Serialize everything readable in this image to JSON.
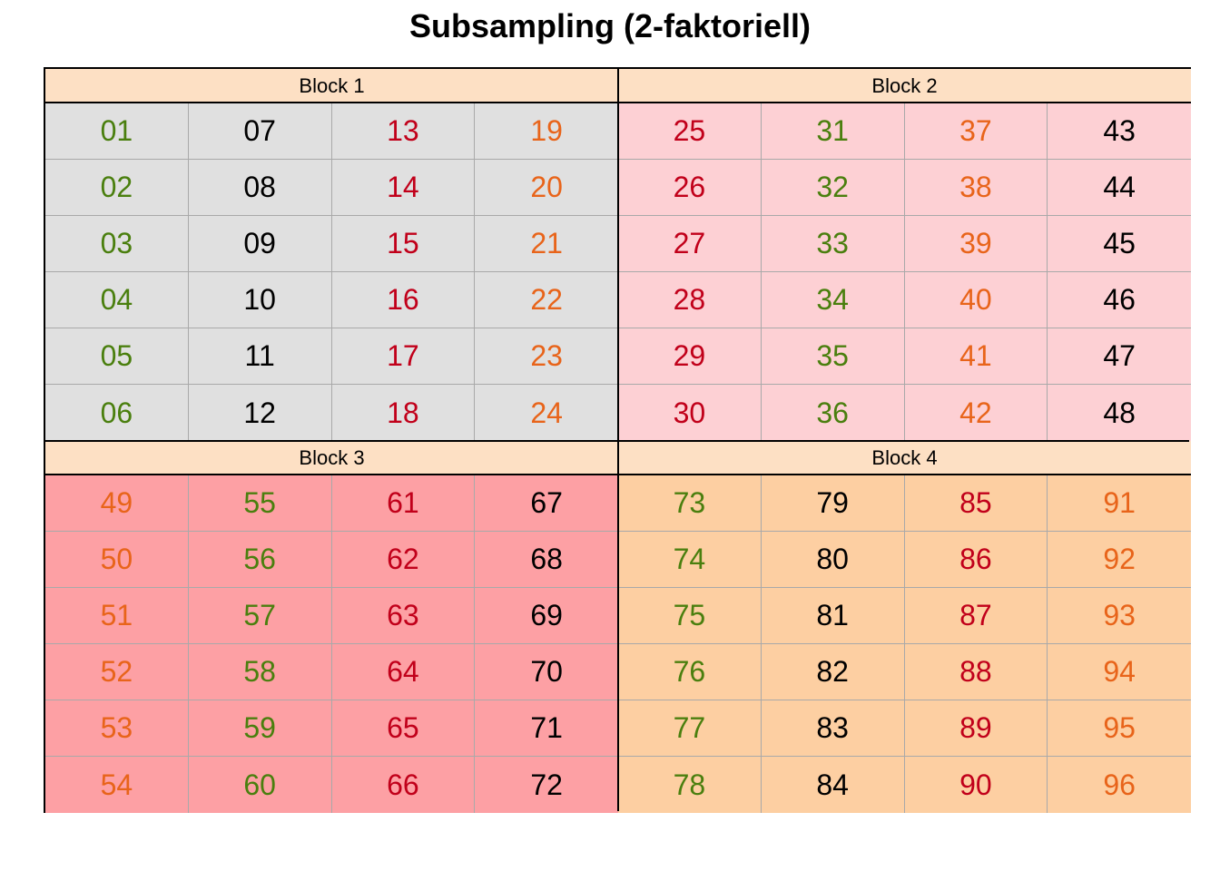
{
  "title": "Subsampling (2-faktoriell)",
  "colors": {
    "header_bg": "#fde0c4",
    "green": "#4a7f0e",
    "black": "#000000",
    "red": "#c1001a",
    "orange": "#e8641a"
  },
  "blocks": [
    {
      "label": "Block 1",
      "bg": "#e0e0e0",
      "column_colors": [
        "green",
        "black",
        "red",
        "orange"
      ],
      "columns": [
        [
          "01",
          "02",
          "03",
          "04",
          "05",
          "06"
        ],
        [
          "07",
          "08",
          "09",
          "10",
          "11",
          "12"
        ],
        [
          "13",
          "14",
          "15",
          "16",
          "17",
          "18"
        ],
        [
          "19",
          "20",
          "21",
          "22",
          "23",
          "24"
        ]
      ]
    },
    {
      "label": "Block 2",
      "bg": "#fdd0d4",
      "column_colors": [
        "red",
        "green",
        "orange",
        "black"
      ],
      "columns": [
        [
          "25",
          "26",
          "27",
          "28",
          "29",
          "30"
        ],
        [
          "31",
          "32",
          "33",
          "34",
          "35",
          "36"
        ],
        [
          "37",
          "38",
          "39",
          "40",
          "41",
          "42"
        ],
        [
          "43",
          "44",
          "45",
          "46",
          "47",
          "48"
        ]
      ]
    },
    {
      "label": "Block 3",
      "bg": "#fda0a4",
      "column_colors": [
        "orange",
        "green",
        "red",
        "black"
      ],
      "columns": [
        [
          "49",
          "50",
          "51",
          "52",
          "53",
          "54"
        ],
        [
          "55",
          "56",
          "57",
          "58",
          "59",
          "60"
        ],
        [
          "61",
          "62",
          "63",
          "64",
          "65",
          "66"
        ],
        [
          "67",
          "68",
          "69",
          "70",
          "71",
          "72"
        ]
      ]
    },
    {
      "label": "Block 4",
      "bg": "#fdcfa2",
      "column_colors": [
        "green",
        "black",
        "red",
        "orange"
      ],
      "columns": [
        [
          "73",
          "74",
          "75",
          "76",
          "77",
          "78"
        ],
        [
          "79",
          "80",
          "81",
          "82",
          "83",
          "84"
        ],
        [
          "85",
          "86",
          "87",
          "88",
          "89",
          "90"
        ],
        [
          "91",
          "92",
          "93",
          "94",
          "95",
          "96"
        ]
      ]
    }
  ]
}
